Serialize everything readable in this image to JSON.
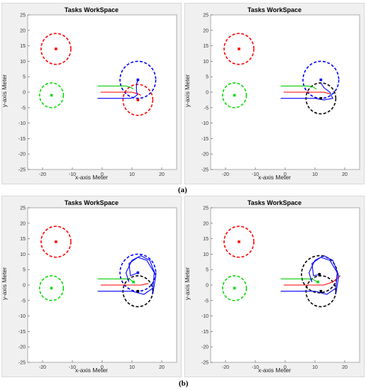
{
  "captions": {
    "a": "(a)",
    "b": "(b)"
  },
  "chart_data": [
    {
      "type": "scatter",
      "title": "Tasks WorkSpace",
      "xlabel": "x-axis  Meter",
      "ylabel": "y-axis  Meter",
      "xlim": [
        -25,
        25
      ],
      "ylim": [
        -25,
        25
      ],
      "xticks": [
        -20,
        -10,
        0,
        10,
        20
      ],
      "yticks": [
        -25,
        -20,
        -15,
        -10,
        -5,
        0,
        5,
        10,
        15,
        20,
        25
      ],
      "grid": false,
      "circles": [
        {
          "color": "#ff0000",
          "cx": -15.5,
          "cy": 14,
          "r": 5
        },
        {
          "color": "#00dd00",
          "cx": -17,
          "cy": -1,
          "r": 4
        },
        {
          "color": "#0000ff",
          "cx": 12,
          "cy": 4,
          "r": 6
        },
        {
          "color": "#ff0000",
          "cx": 12,
          "cy": -2.5,
          "r": 5
        }
      ],
      "paths": [
        {
          "color": "#00cc00",
          "points": [
            [
              -1.5,
              2
            ],
            [
              8,
              2
            ],
            [
              9.5,
              1.6
            ],
            [
              10.5,
              1
            ]
          ]
        },
        {
          "color": "#ff0000",
          "points": [
            [
              -0.5,
              0
            ],
            [
              10,
              0
            ],
            [
              12,
              -0.5
            ],
            [
              13,
              -1
            ]
          ]
        },
        {
          "color": "#0000ff",
          "points": [
            [
              -1.5,
              -2
            ],
            [
              9.5,
              -2
            ],
            [
              11,
              -1.5
            ],
            [
              11.8,
              -0.8
            ],
            [
              11.5,
              0.5
            ],
            [
              11.5,
              2.5
            ],
            [
              12,
              4
            ]
          ]
        }
      ],
      "markers": [
        {
          "color": "#ff0000",
          "x": -15.5,
          "y": 14
        },
        {
          "color": "#00dd00",
          "x": -17,
          "y": -1
        },
        {
          "color": "#0000ff",
          "x": 12,
          "y": 4
        },
        {
          "color": "#ff0000",
          "x": 12,
          "y": -2.5
        }
      ]
    },
    {
      "type": "scatter",
      "title": "Tasks WorkSpace",
      "xlabel": "x-axis  Meter",
      "ylabel": "y-axis  Meter",
      "xlim": [
        -25,
        25
      ],
      "ylim": [
        -25,
        25
      ],
      "xticks": [
        -20,
        -10,
        0,
        10,
        20
      ],
      "yticks": [
        -25,
        -20,
        -15,
        -10,
        -5,
        0,
        5,
        10,
        15,
        20,
        25
      ],
      "grid": false,
      "circles": [
        {
          "color": "#ff0000",
          "cx": -15.5,
          "cy": 14,
          "r": 5
        },
        {
          "color": "#00dd00",
          "cx": -17,
          "cy": -1,
          "r": 4
        },
        {
          "color": "#0000ff",
          "cx": 12,
          "cy": 4,
          "r": 6
        },
        {
          "color": "#000000",
          "cx": 12,
          "cy": -2,
          "r": 5
        }
      ],
      "paths": [
        {
          "color": "#00cc00",
          "points": [
            [
              -1.5,
              2
            ],
            [
              8,
              2
            ],
            [
              9.5,
              1.6
            ],
            [
              10.5,
              1
            ]
          ]
        },
        {
          "color": "#ff0000",
          "points": [
            [
              -0.5,
              0
            ],
            [
              10,
              0
            ],
            [
              13,
              0
            ],
            [
              15,
              -0.5
            ]
          ]
        },
        {
          "color": "#0000ff",
          "points": [
            [
              -1.5,
              -2
            ],
            [
              10,
              -2
            ],
            [
              13,
              -2.5
            ],
            [
              16,
              -2
            ],
            [
              15,
              0
            ],
            [
              13,
              1.5
            ],
            [
              12,
              3
            ]
          ]
        }
      ],
      "markers": [
        {
          "color": "#ff0000",
          "x": -15.5,
          "y": 14
        },
        {
          "color": "#00dd00",
          "x": -17,
          "y": -1
        },
        {
          "color": "#0000ff",
          "x": 12,
          "y": 4
        },
        {
          "color": "#000000",
          "x": 12,
          "y": -2
        }
      ]
    },
    {
      "type": "scatter",
      "title": "Tasks WorkSpace",
      "xlabel": "x-axis  Meter",
      "ylabel": "y-axis  Meter",
      "xlim": [
        -25,
        25
      ],
      "ylim": [
        -25,
        25
      ],
      "xticks": [
        -20,
        -10,
        0,
        10,
        20
      ],
      "yticks": [
        -25,
        -20,
        -15,
        -10,
        -5,
        0,
        5,
        10,
        15,
        20,
        25
      ],
      "grid": false,
      "circles": [
        {
          "color": "#ff0000",
          "cx": -15.5,
          "cy": 14,
          "r": 5
        },
        {
          "color": "#00dd00",
          "cx": -17,
          "cy": -1,
          "r": 4
        },
        {
          "color": "#0000ff",
          "cx": 12,
          "cy": 4,
          "r": 6
        },
        {
          "color": "#000000",
          "cx": 12,
          "cy": -2,
          "r": 5
        }
      ],
      "paths": [
        {
          "color": "#00cc00",
          "points": [
            [
              -1.5,
              2
            ],
            [
              9,
              2
            ],
            [
              10.5,
              1
            ],
            [
              11,
              0.5
            ]
          ]
        },
        {
          "color": "#ff0000",
          "points": [
            [
              -0.5,
              0
            ],
            [
              10,
              0
            ],
            [
              13,
              0
            ],
            [
              15.5,
              0.5
            ]
          ]
        },
        {
          "color": "#0000ff",
          "points": [
            [
              -1.5,
              -2
            ],
            [
              10,
              -2
            ],
            [
              14,
              -3
            ],
            [
              17,
              -1
            ],
            [
              17.5,
              4
            ],
            [
              15,
              8
            ],
            [
              12,
              9
            ],
            [
              9,
              7
            ],
            [
              9.5,
              3
            ],
            [
              12,
              4
            ]
          ]
        },
        {
          "color": "#0000ff",
          "points": [
            [
              9,
              1
            ],
            [
              8,
              4
            ],
            [
              10,
              8
            ],
            [
              13,
              9.5
            ],
            [
              16,
              8
            ],
            [
              18,
              3
            ],
            [
              17,
              -3
            ]
          ]
        }
      ],
      "markers": [
        {
          "color": "#ff0000",
          "x": -15.5,
          "y": 14
        },
        {
          "color": "#00dd00",
          "x": -17,
          "y": -1
        },
        {
          "color": "#0000ff",
          "x": 12,
          "y": 4
        },
        {
          "color": "#000000",
          "x": 12,
          "y": -2
        },
        {
          "color": "#00dd00",
          "x": 10.5,
          "y": 1
        }
      ]
    },
    {
      "type": "scatter",
      "title": "Tasks WorkSpace",
      "xlabel": "x-axis  Meter",
      "ylabel": "y-axis  Meter",
      "xlim": [
        -25,
        25
      ],
      "ylim": [
        -25,
        25
      ],
      "xticks": [
        -20,
        -10,
        0,
        10,
        20
      ],
      "yticks": [
        -25,
        -20,
        -15,
        -10,
        -5,
        0,
        5,
        10,
        15,
        20,
        25
      ],
      "grid": false,
      "circles": [
        {
          "color": "#ff0000",
          "cx": -15.5,
          "cy": 14,
          "r": 5
        },
        {
          "color": "#00dd00",
          "cx": -17,
          "cy": -1,
          "r": 4
        },
        {
          "color": "#000000",
          "cx": 11.5,
          "cy": 3.5,
          "r": 6
        },
        {
          "color": "#000000",
          "cx": 12,
          "cy": -2,
          "r": 5
        }
      ],
      "paths": [
        {
          "color": "#00cc00",
          "points": [
            [
              -1.5,
              2
            ],
            [
              9,
              2
            ],
            [
              10.5,
              1.2
            ],
            [
              11,
              1
            ]
          ]
        },
        {
          "color": "#ff0000",
          "points": [
            [
              -0.5,
              0
            ],
            [
              10,
              0
            ],
            [
              13,
              0
            ],
            [
              16,
              1
            ],
            [
              18.5,
              3
            ]
          ]
        },
        {
          "color": "#0000ff",
          "points": [
            [
              -1.5,
              -2
            ],
            [
              10,
              -2
            ],
            [
              14,
              -3
            ],
            [
              17,
              -1
            ],
            [
              17.5,
              4
            ],
            [
              15,
              8
            ],
            [
              12,
              9
            ],
            [
              9,
              7
            ],
            [
              9.5,
              3
            ],
            [
              12,
              3.5
            ]
          ]
        },
        {
          "color": "#0000ff",
          "points": [
            [
              9,
              1
            ],
            [
              8,
              4
            ],
            [
              10,
              8
            ],
            [
              13,
              9.5
            ],
            [
              16,
              8
            ],
            [
              18,
              3
            ],
            [
              17,
              -3
            ]
          ]
        }
      ],
      "markers": [
        {
          "color": "#ff0000",
          "x": -15.5,
          "y": 14
        },
        {
          "color": "#00dd00",
          "x": -17,
          "y": -1
        },
        {
          "color": "#000000",
          "x": 11.5,
          "y": 3.5
        },
        {
          "color": "#000000",
          "x": 12,
          "y": -2
        },
        {
          "color": "#00dd00",
          "x": 11,
          "y": 1
        }
      ]
    }
  ]
}
